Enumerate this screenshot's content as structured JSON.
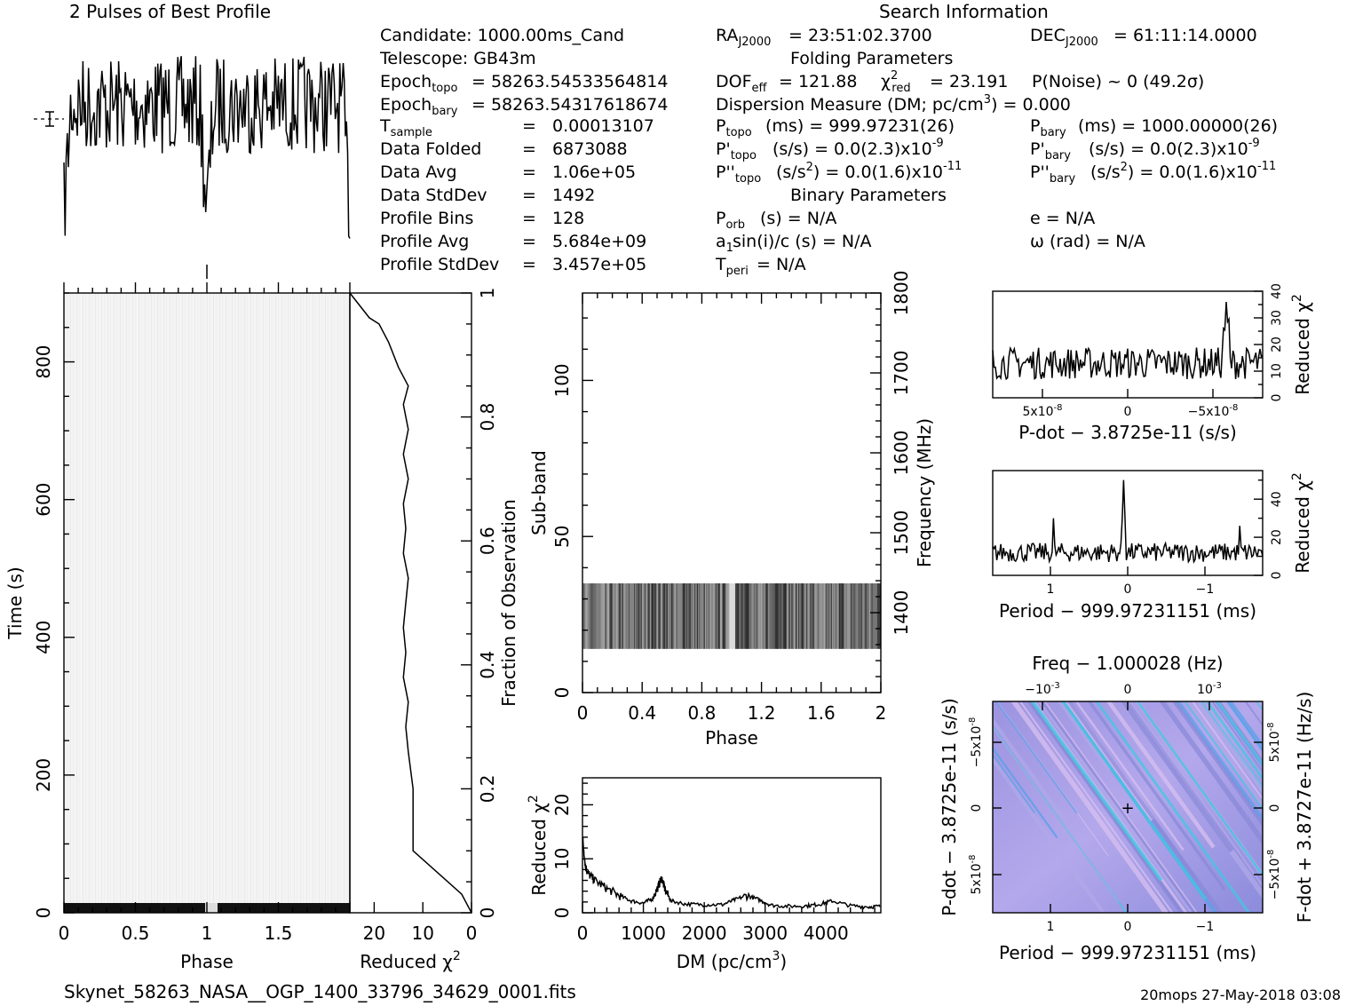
{
  "footer": {
    "filename": "Skynet_58263_NASA__OGP_1400_33796_34629_0001.fits",
    "stamp": "20mops 27-May-2018 03:08"
  },
  "info": {
    "profile_title": "2 Pulses of Best Profile",
    "search_title": "Search Information",
    "candidate": "Candidate:  1000.00ms_Cand",
    "telescope": "Telescope:   GB43m",
    "epoch_topo": "= 58263.54533564814",
    "epoch_bary": "= 58263.54317618674",
    "t_sample": "0.00013107",
    "data_folded": "6873088",
    "data_avg": "1.06e+05",
    "data_stddev": "1492",
    "profile_bins": "128",
    "profile_avg": "5.684e+09",
    "profile_stddev": "3.457e+05",
    "ra": "= 23:51:02.3700",
    "dec": "= 61:11:14.0000",
    "folding_title": "Folding Parameters",
    "dof_eff": "= 121.88",
    "chi2_red": "= 23.191",
    "p_noise": "P(Noise) ~ 0    (49.2σ)",
    "dm_line": "Dispersion Measure (DM; pc/cm",
    "dm_value": ") = 0.000",
    "p_topo": "(ms) =  999.97231(26)",
    "p_bary": "(ms) =  1000.00000(26)",
    "pd_topo": "(s/s) = 0.0(2.3)x10",
    "pd_bary": "(s/s) = 0.0(2.3)x10",
    "pd_exp": "-9",
    "pdd_topo": "(s/s",
    "pdd_bary": "(s/s",
    "pdd_tail": ") = 0.0(1.6)x10",
    "pdd_exp": "-11",
    "binary_title": "Binary Parameters",
    "p_orb": "(s) = N/A",
    "e": "e = N/A",
    "a1": "sin(i)/c (s) = N/A",
    "omega": "ω (rad) = N/A",
    "t_peri": "= N/A"
  },
  "chart_data": [
    {
      "type": "line",
      "name": "profile",
      "title": "2 Pulses of Best Profile",
      "x_range": [
        0,
        2
      ],
      "note": "noisy profile with two dips at phase ~0 and ~1"
    },
    {
      "type": "heatmap",
      "name": "time-phase",
      "xlabel": "Phase",
      "ylabel": "Time (s)",
      "xlim": [
        0,
        2
      ],
      "ylim": [
        0,
        900
      ],
      "x_ticks": [
        "0",
        "0.5",
        "1",
        "1.5"
      ],
      "y_ticks": [
        "0",
        "200",
        "400",
        "600",
        "800"
      ]
    },
    {
      "type": "line",
      "name": "time-chi2",
      "xlabel": "Reduced χ",
      "ylabel": "Fraction of Observation",
      "xlim": [
        25,
        0
      ],
      "ylim": [
        0,
        1
      ],
      "x_ticks": [
        "20",
        "10",
        "0"
      ],
      "y_ticks": [
        "0",
        "0.2",
        "0.4",
        "0.6",
        "0.8",
        "1"
      ],
      "x": [
        25,
        23,
        21,
        19,
        17,
        15,
        13,
        14,
        13,
        14,
        13,
        14,
        13.5,
        14,
        13,
        13.5,
        14,
        13.5,
        14,
        13,
        13.5,
        13,
        12,
        12,
        2,
        0
      ],
      "y": [
        1.0,
        0.98,
        0.96,
        0.95,
        0.92,
        0.88,
        0.85,
        0.82,
        0.78,
        0.74,
        0.7,
        0.66,
        0.62,
        0.58,
        0.54,
        0.5,
        0.46,
        0.42,
        0.38,
        0.34,
        0.3,
        0.26,
        0.2,
        0.1,
        0.03,
        0.0
      ]
    },
    {
      "type": "heatmap",
      "name": "subband-phase",
      "xlabel": "Phase",
      "ylabel": "Sub-band",
      "y2label": "Frequency (MHz)",
      "xlim": [
        0,
        2
      ],
      "ylim": [
        0,
        128
      ],
      "y2lim": [
        1300,
        1800
      ],
      "x_ticks": [
        "0",
        "0.4",
        "0.8",
        "1.2",
        "1.6",
        "2"
      ],
      "y_ticks": [
        "0",
        "50",
        "100"
      ],
      "y2_ticks": [
        "1400",
        "1500",
        "1600",
        "1700",
        "1800"
      ],
      "active_subbands": [
        14,
        35
      ]
    },
    {
      "type": "line",
      "name": "dm-chi2",
      "xlabel": "DM (pc/cm",
      "ylabel": "Reduced χ",
      "xlim": [
        0,
        4900
      ],
      "ylim": [
        0,
        25
      ],
      "x_ticks": [
        "0",
        "1000",
        "2000",
        "3000",
        "4000"
      ],
      "y_ticks": [
        "0",
        "10",
        "20"
      ],
      "x": [
        0,
        50,
        100,
        200,
        400,
        600,
        800,
        1000,
        1150,
        1250,
        1300,
        1350,
        1450,
        1700,
        2000,
        2300,
        2500,
        2700,
        2900,
        3100,
        3400,
        3700,
        3900,
        4100,
        4400,
        4700,
        4900
      ],
      "y": [
        14,
        8.5,
        7.2,
        6,
        4.5,
        3.2,
        2.2,
        1.8,
        2.6,
        5,
        6.5,
        4.5,
        2.2,
        1.6,
        1.5,
        1.5,
        2.4,
        3.2,
        2.4,
        1.4,
        1.2,
        1.3,
        1.6,
        2.2,
        1.3,
        1.1,
        1.2
      ]
    },
    {
      "type": "line",
      "name": "pdot-chi2",
      "xlabel": "P-dot − 3.8725e-11 (s/s)",
      "ylabel": "Reduced χ",
      "ylim": [
        0,
        40
      ],
      "x_ticks": [
        "5x10",
        "0",
        "−5x10"
      ],
      "y_ticks": [
        "0",
        "10",
        "20",
        "30",
        "40"
      ]
    },
    {
      "type": "line",
      "name": "period-chi2",
      "xlabel": "Period − 999.97231151 (ms)",
      "ylabel": "Reduced χ",
      "ylim": [
        0,
        55
      ],
      "x_ticks": [
        "1",
        "0",
        "−1"
      ],
      "y_ticks": [
        "0",
        "20",
        "40"
      ]
    },
    {
      "type": "heatmap",
      "name": "p-pdot",
      "xlabel": "Period − 999.97231151 (ms)",
      "ylabel": "P-dot − 3.8725e-11 (s/s)",
      "x2label": "Freq − 1.000028 (Hz)",
      "y2label": "F-dot + 3.8727e-11 (Hz/s)",
      "x_ticks": [
        "1",
        "0",
        "−1"
      ],
      "x2_ticks": [
        "−10",
        "0",
        "10"
      ],
      "y_ticks": [
        "−5x10",
        "0",
        "5x10"
      ],
      "y2_ticks": [
        "5x10",
        "0",
        "−5x10"
      ],
      "colors": [
        "#8a8ad8",
        "#b0a8e8",
        "#d8c0f0",
        "#5aa0e8",
        "#40c8e0"
      ]
    }
  ]
}
